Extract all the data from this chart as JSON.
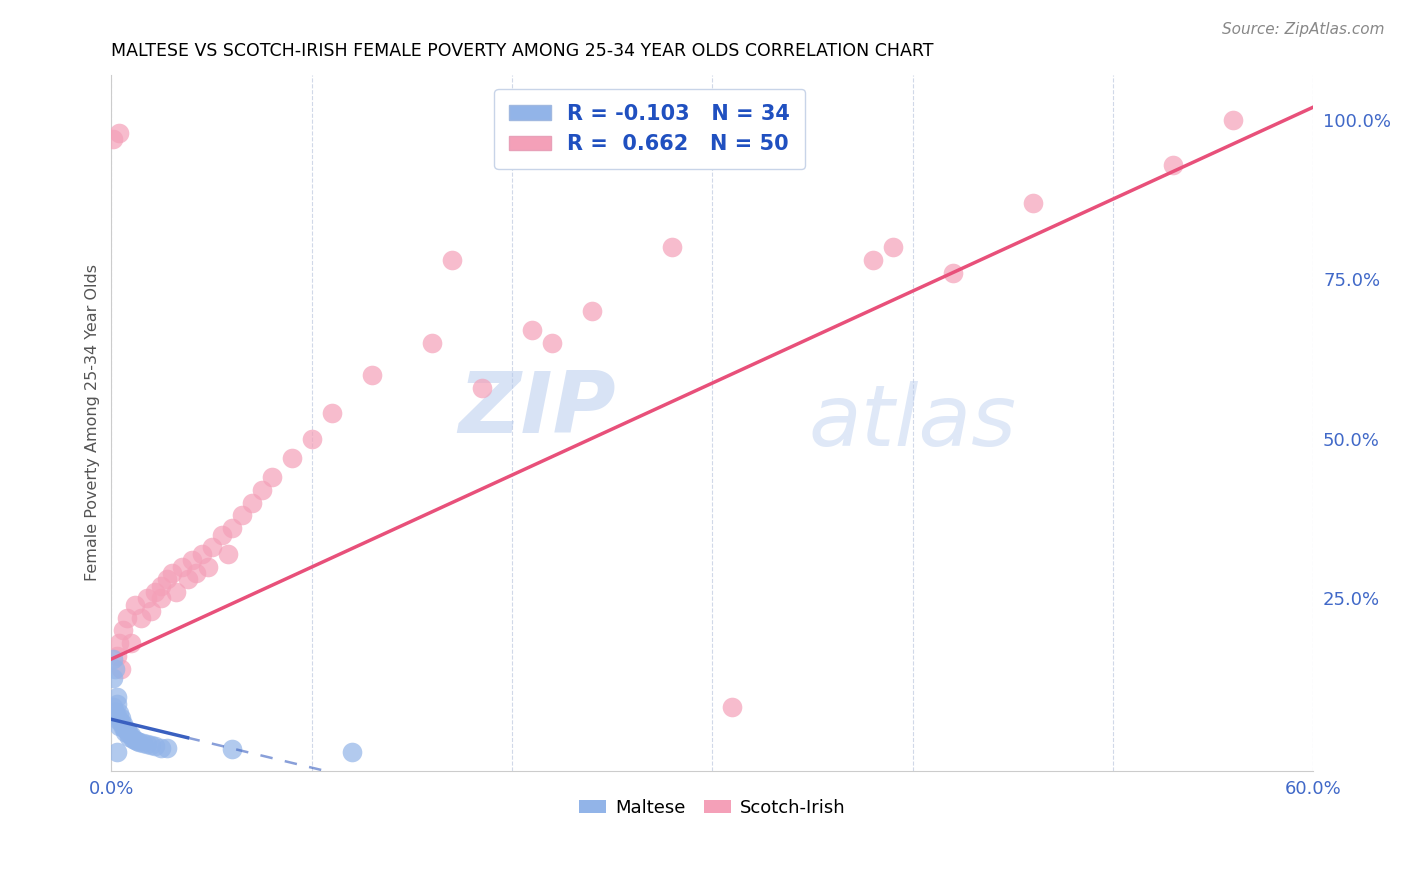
{
  "title": "MALTESE VS SCOTCH-IRISH FEMALE POVERTY AMONG 25-34 YEAR OLDS CORRELATION CHART",
  "source": "Source: ZipAtlas.com",
  "ylabel": "Female Poverty Among 25-34 Year Olds",
  "xlim": [
    0.0,
    0.6
  ],
  "ylim": [
    -0.02,
    1.07
  ],
  "xticks": [
    0.0,
    0.1,
    0.2,
    0.3,
    0.4,
    0.5,
    0.6
  ],
  "xticklabels": [
    "0.0%",
    "",
    "",
    "",
    "",
    "",
    "60.0%"
  ],
  "yticks_right": [
    0.25,
    0.5,
    0.75,
    1.0
  ],
  "yticklabels_right": [
    "25.0%",
    "50.0%",
    "75.0%",
    "100.0%"
  ],
  "maltese_R": -0.103,
  "maltese_N": 34,
  "scotch_irish_R": 0.662,
  "scotch_irish_N": 50,
  "maltese_color": "#92b4e8",
  "scotch_irish_color": "#f4a0b8",
  "maltese_line_color": "#3a60c0",
  "scotch_irish_line_color": "#e8507a",
  "grid_color": "#d0d8e8",
  "watermark_zip": "ZIP",
  "watermark_atlas": "atlas",
  "maltese_scatter": [
    [
      0.001,
      0.155
    ],
    [
      0.002,
      0.14
    ],
    [
      0.001,
      0.125
    ],
    [
      0.003,
      0.095
    ],
    [
      0.003,
      0.085
    ],
    [
      0.001,
      0.08
    ],
    [
      0.002,
      0.072
    ],
    [
      0.004,
      0.07
    ],
    [
      0.003,
      0.065
    ],
    [
      0.005,
      0.062
    ],
    [
      0.004,
      0.058
    ],
    [
      0.005,
      0.056
    ],
    [
      0.006,
      0.053
    ],
    [
      0.004,
      0.05
    ],
    [
      0.006,
      0.048
    ],
    [
      0.007,
      0.045
    ],
    [
      0.008,
      0.043
    ],
    [
      0.007,
      0.04
    ],
    [
      0.009,
      0.038
    ],
    [
      0.01,
      0.036
    ],
    [
      0.009,
      0.033
    ],
    [
      0.011,
      0.03
    ],
    [
      0.012,
      0.028
    ],
    [
      0.013,
      0.027
    ],
    [
      0.014,
      0.025
    ],
    [
      0.016,
      0.023
    ],
    [
      0.018,
      0.022
    ],
    [
      0.02,
      0.02
    ],
    [
      0.022,
      0.018
    ],
    [
      0.025,
      0.016
    ],
    [
      0.028,
      0.015
    ],
    [
      0.003,
      0.01
    ],
    [
      0.06,
      0.014
    ],
    [
      0.12,
      0.01
    ]
  ],
  "scotch_irish_scatter": [
    [
      0.001,
      0.97
    ],
    [
      0.004,
      0.98
    ],
    [
      0.003,
      0.16
    ],
    [
      0.004,
      0.18
    ],
    [
      0.005,
      0.14
    ],
    [
      0.006,
      0.2
    ],
    [
      0.008,
      0.22
    ],
    [
      0.01,
      0.18
    ],
    [
      0.012,
      0.24
    ],
    [
      0.015,
      0.22
    ],
    [
      0.018,
      0.25
    ],
    [
      0.02,
      0.23
    ],
    [
      0.022,
      0.26
    ],
    [
      0.025,
      0.27
    ],
    [
      0.025,
      0.25
    ],
    [
      0.028,
      0.28
    ],
    [
      0.03,
      0.29
    ],
    [
      0.032,
      0.26
    ],
    [
      0.035,
      0.3
    ],
    [
      0.038,
      0.28
    ],
    [
      0.04,
      0.31
    ],
    [
      0.042,
      0.29
    ],
    [
      0.045,
      0.32
    ],
    [
      0.048,
      0.3
    ],
    [
      0.05,
      0.33
    ],
    [
      0.055,
      0.35
    ],
    [
      0.058,
      0.32
    ],
    [
      0.06,
      0.36
    ],
    [
      0.065,
      0.38
    ],
    [
      0.07,
      0.4
    ],
    [
      0.075,
      0.42
    ],
    [
      0.08,
      0.44
    ],
    [
      0.09,
      0.47
    ],
    [
      0.1,
      0.5
    ],
    [
      0.11,
      0.54
    ],
    [
      0.13,
      0.6
    ],
    [
      0.16,
      0.65
    ],
    [
      0.185,
      0.58
    ],
    [
      0.21,
      0.67
    ],
    [
      0.22,
      0.65
    ],
    [
      0.24,
      0.7
    ],
    [
      0.28,
      0.8
    ],
    [
      0.17,
      0.78
    ],
    [
      0.31,
      0.08
    ],
    [
      0.38,
      0.78
    ],
    [
      0.39,
      0.8
    ],
    [
      0.42,
      0.76
    ],
    [
      0.46,
      0.87
    ],
    [
      0.53,
      0.93
    ],
    [
      0.56,
      1.0
    ]
  ]
}
